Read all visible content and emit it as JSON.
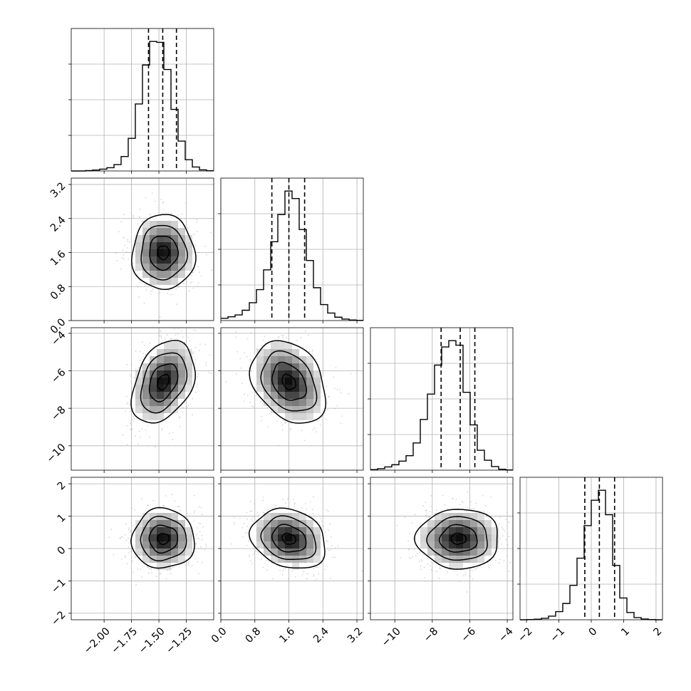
{
  "chart_data": {
    "type": "corner",
    "parameters": 4,
    "axes": [
      {
        "index": 0,
        "range": [
          -2.3,
          -1.0
        ],
        "ticks": [
          -2.0,
          -1.75,
          -1.5,
          -1.25
        ],
        "tick_labels": [
          "−2.00",
          "−1.75",
          "−1.50",
          "−1.25"
        ]
      },
      {
        "index": 1,
        "range": [
          0.0,
          3.35
        ],
        "ticks": [
          0.0,
          0.8,
          1.6,
          2.4,
          3.2
        ],
        "tick_labels": [
          "0.0",
          "0.8",
          "1.6",
          "2.4",
          "3.2"
        ]
      },
      {
        "index": 2,
        "range": [
          -11.3,
          -3.7
        ],
        "ticks": [
          -10,
          -8,
          -6,
          -4
        ],
        "tick_labels": [
          "−10",
          "−8",
          "−6",
          "−4"
        ]
      },
      {
        "index": 3,
        "range": [
          -2.2,
          2.2
        ],
        "ticks": [
          -2,
          -1,
          0,
          1,
          2
        ],
        "tick_labels": [
          "−2",
          "−1",
          "0",
          "1",
          "2"
        ]
      }
    ],
    "histograms": [
      {
        "param": 0,
        "bin_edges": [
          -2.3,
          -2.235,
          -2.17,
          -2.105,
          -2.04,
          -1.975,
          -1.91,
          -1.845,
          -1.78,
          -1.715,
          -1.65,
          -1.585,
          -1.52,
          -1.455,
          -1.39,
          -1.325,
          -1.26,
          -1.195,
          -1.13,
          -1.065,
          -1.0
        ],
        "counts": [
          0,
          0,
          2,
          5,
          10,
          18,
          35,
          80,
          180,
          370,
          585,
          715,
          710,
          560,
          340,
          165,
          62,
          22,
          6,
          1
        ],
        "quantiles": [
          -1.595,
          -1.465,
          -1.34
        ]
      },
      {
        "param": 1,
        "bin_edges": [
          0.0,
          0.1675,
          0.335,
          0.5025,
          0.67,
          0.8375,
          1.005,
          1.1725,
          1.34,
          1.5075,
          1.675,
          1.8425,
          2.01,
          2.1775,
          2.345,
          2.5125,
          2.68,
          2.8475,
          3.015,
          3.1825,
          3.35
        ],
        "counts": [
          12,
          20,
          30,
          55,
          95,
          165,
          270,
          420,
          565,
          690,
          650,
          485,
          320,
          175,
          85,
          40,
          18,
          8,
          3,
          1
        ],
        "quantiles": [
          1.2,
          1.6,
          1.97
        ]
      },
      {
        "param": 2,
        "bin_edges": [
          -11.3,
          -10.92,
          -10.54,
          -10.16,
          -9.78,
          -9.4,
          -9.02,
          -8.64,
          -8.26,
          -7.88,
          -7.5,
          -7.12,
          -6.74,
          -6.36,
          -5.98,
          -5.6,
          -5.22,
          -4.84,
          -4.46,
          -4.08,
          -3.7
        ],
        "counts": [
          3,
          8,
          18,
          30,
          50,
          80,
          150,
          280,
          420,
          580,
          680,
          715,
          690,
          430,
          250,
          110,
          55,
          20,
          5,
          1
        ],
        "quantiles": [
          -7.53,
          -6.51,
          -5.73
        ]
      },
      {
        "param": 3,
        "bin_edges": [
          -2.2,
          -1.98,
          -1.76,
          -1.54,
          -1.32,
          -1.1,
          -0.88,
          -0.66,
          -0.44,
          -0.22,
          0.0,
          0.22,
          0.44,
          0.66,
          0.88,
          1.1,
          1.32,
          1.54,
          1.76,
          1.98,
          2.2
        ],
        "counts": [
          0,
          1,
          3,
          8,
          20,
          45,
          90,
          190,
          340,
          520,
          660,
          715,
          580,
          300,
          120,
          40,
          12,
          4,
          1,
          0
        ],
        "quantiles": [
          -0.2,
          0.25,
          0.72
        ]
      }
    ],
    "pairs": [
      {
        "x": 0,
        "y": 1,
        "center": [
          -1.46,
          1.6
        ],
        "sigma": [
          0.13,
          0.4
        ],
        "rho": 0.0
      },
      {
        "x": 0,
        "y": 2,
        "center": [
          -1.46,
          -6.6
        ],
        "sigma": [
          0.13,
          1.0
        ],
        "rho": 0.35
      },
      {
        "x": 1,
        "y": 2,
        "center": [
          1.6,
          -6.6
        ],
        "sigma": [
          0.4,
          1.0
        ],
        "rho": -0.3
      },
      {
        "x": 0,
        "y": 3,
        "center": [
          -1.46,
          0.3
        ],
        "sigma": [
          0.13,
          0.42
        ],
        "rho": 0.0
      },
      {
        "x": 1,
        "y": 3,
        "center": [
          1.6,
          0.3
        ],
        "sigma": [
          0.4,
          0.42
        ],
        "rho": -0.2
      },
      {
        "x": 2,
        "y": 3,
        "center": [
          -6.6,
          0.3
        ],
        "sigma": [
          1.0,
          0.42
        ],
        "rho": 0.0
      }
    ],
    "grid": true,
    "colors": {
      "line": "#000000",
      "grid": "#b0b0b0",
      "scatter": "#b4b4b4",
      "density": "#000000"
    }
  }
}
